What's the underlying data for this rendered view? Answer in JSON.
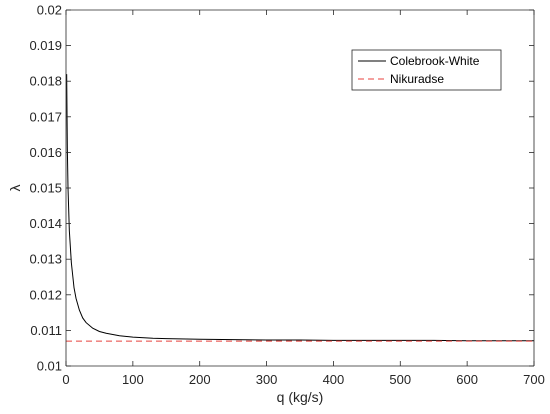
{
  "chart_data": {
    "type": "line",
    "xlabel": "q (kg/s)",
    "ylabel": "λ",
    "xlim": [
      0,
      700
    ],
    "ylim": [
      0.01,
      0.02
    ],
    "x_ticks": [
      "0",
      "100",
      "200",
      "300",
      "400",
      "500",
      "600",
      "700"
    ],
    "y_ticks": [
      "0.01",
      "0.011",
      "0.012",
      "0.013",
      "0.014",
      "0.015",
      "0.016",
      "0.017",
      "0.018",
      "0.019",
      "0.02"
    ],
    "grid": false,
    "legend_position": "top-right",
    "series": [
      {
        "name": "Colebrook-White",
        "style": "solid",
        "color": "#000000",
        "x": [
          1,
          2,
          3,
          5,
          8,
          12,
          15,
          20,
          25,
          30,
          40,
          50,
          60,
          80,
          100,
          130,
          150,
          200,
          250,
          300,
          350,
          400,
          450,
          500,
          550,
          600,
          650,
          700
        ],
        "y": [
          0.0182,
          0.0161,
          0.015,
          0.0138,
          0.0129,
          0.0122,
          0.0119,
          0.01157,
          0.01135,
          0.01122,
          0.01106,
          0.01097,
          0.01092,
          0.01085,
          0.01081,
          0.01078,
          0.01077,
          0.01075,
          0.01074,
          0.01073,
          0.01073,
          0.01072,
          0.01072,
          0.01072,
          0.01072,
          0.01071,
          0.01071,
          0.01071
        ]
      },
      {
        "name": "Nikuradse",
        "style": "dashed",
        "color": "#e8413c",
        "x": [
          0,
          700
        ],
        "y": [
          0.0107,
          0.0107
        ]
      }
    ]
  }
}
